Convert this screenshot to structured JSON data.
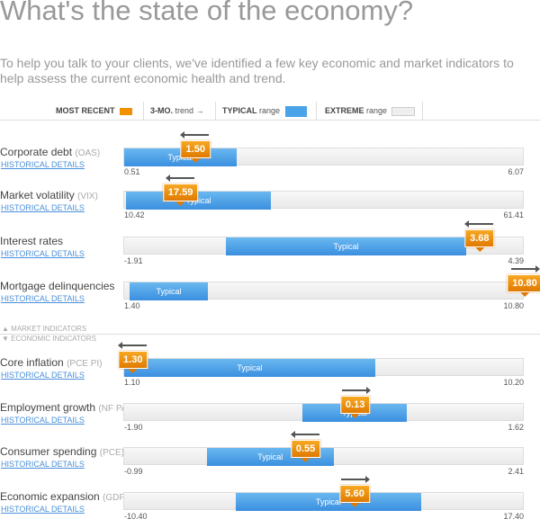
{
  "title": "What's the state of the economy?",
  "subtitle": "To help you talk to your clients, we've identified a few key economic and market indicators to help assess the current economic health and trend.",
  "legend": {
    "most_recent": "MOST RECENT",
    "trend_bold": "3-MO.",
    "trend": "trend",
    "typical_bold": "TYPICAL",
    "typical": "range",
    "extreme_bold": "EXTREME",
    "extreme": "range"
  },
  "link_label": "HISTORICAL DETAILS",
  "typical_label": "Typical",
  "sections": {
    "market": "MARKET INDICATORS",
    "economic": "ECONOMIC INDICATORS"
  },
  "colors": {
    "marker": "#f29100",
    "typical": "#4aa3e8",
    "extreme": "#efefef",
    "link": "#4a90d9"
  },
  "indicators": [
    {
      "name": "Corporate debt",
      "code": "(OAS)",
      "min": "0.51",
      "max": "6.07",
      "value": "1.50",
      "typical": [
        0.51,
        2.07
      ],
      "trend": "left",
      "group": "market"
    },
    {
      "name": "Market volatility",
      "code": "(VIX)",
      "min": "10.42",
      "max": "61.41",
      "value": "17.59",
      "typical": [
        10.65,
        29.1
      ],
      "trend": "left",
      "group": "market"
    },
    {
      "name": "Interest rates",
      "code": "",
      "min": "-1.91",
      "max": "4.39",
      "value": "3.68",
      "typical": [
        -0.31,
        3.47
      ],
      "trend": "left",
      "group": "market"
    },
    {
      "name": "Mortgage delinquencies",
      "code": "",
      "min": "1.40",
      "max": "10.80",
      "value": "10.80",
      "typical": [
        1.53,
        3.36
      ],
      "trend": "right",
      "group": "market"
    },
    {
      "name": "Core inflation",
      "code": "(PCE PI)",
      "min": "1.10",
      "max": "10.20",
      "value": "1.30",
      "typical": [
        1.1,
        6.8
      ],
      "trend": "left",
      "group": "economic"
    },
    {
      "name": "Employment growth",
      "code": "(NF PAY)",
      "min": "-1.90",
      "max": "1.62",
      "value": "0.13",
      "typical": [
        -0.33,
        0.58
      ],
      "trend": "right",
      "group": "economic"
    },
    {
      "name": "Consumer spending",
      "code": "(PCE)",
      "min": "-0.99",
      "max": "2.41",
      "value": "0.55",
      "typical": [
        -0.29,
        0.79
      ],
      "trend": "left",
      "group": "economic"
    },
    {
      "name": "Economic expansion",
      "code": "(GDP)",
      "min": "-10.40",
      "max": "17.40",
      "value": "5.60",
      "typical": [
        -2.65,
        10.2
      ],
      "trend": "right",
      "group": "economic"
    }
  ]
}
